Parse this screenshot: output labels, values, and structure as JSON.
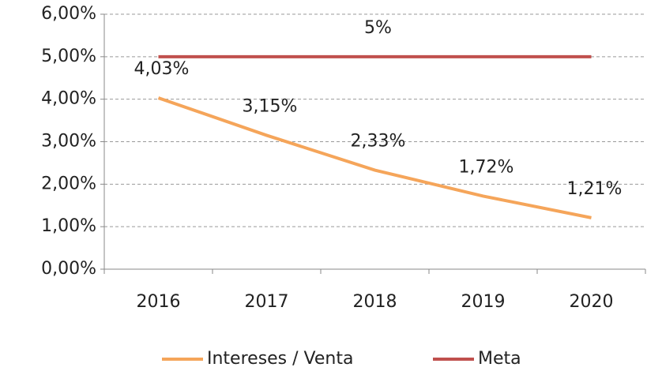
{
  "chart_data": {
    "type": "line",
    "categories": [
      "2016",
      "2017",
      "2018",
      "2019",
      "2020"
    ],
    "series": [
      {
        "name": "Intereses / Venta",
        "color": "#f5a55a",
        "values": [
          4.03,
          3.15,
          2.33,
          1.72,
          1.21
        ],
        "value_labels": [
          "4,03%",
          "3,15%",
          "2,33%",
          "1,72%",
          "1,21%"
        ]
      },
      {
        "name": "Meta",
        "color": "#c0504d",
        "values": [
          5,
          5,
          5,
          5,
          5
        ],
        "value_labels": [
          null,
          null,
          "5%",
          null,
          null
        ]
      }
    ],
    "ylim": [
      0,
      6
    ],
    "yticks": [
      {
        "value": 0,
        "label": "0,00%"
      },
      {
        "value": 1,
        "label": "1,00%"
      },
      {
        "value": 2,
        "label": "2,00%"
      },
      {
        "value": 3,
        "label": "3,00%"
      },
      {
        "value": 4,
        "label": "4,00%"
      },
      {
        "value": 5,
        "label": "5,00%"
      },
      {
        "value": 6,
        "label": "6,00%"
      }
    ],
    "grid": true,
    "legend": "bottom"
  }
}
